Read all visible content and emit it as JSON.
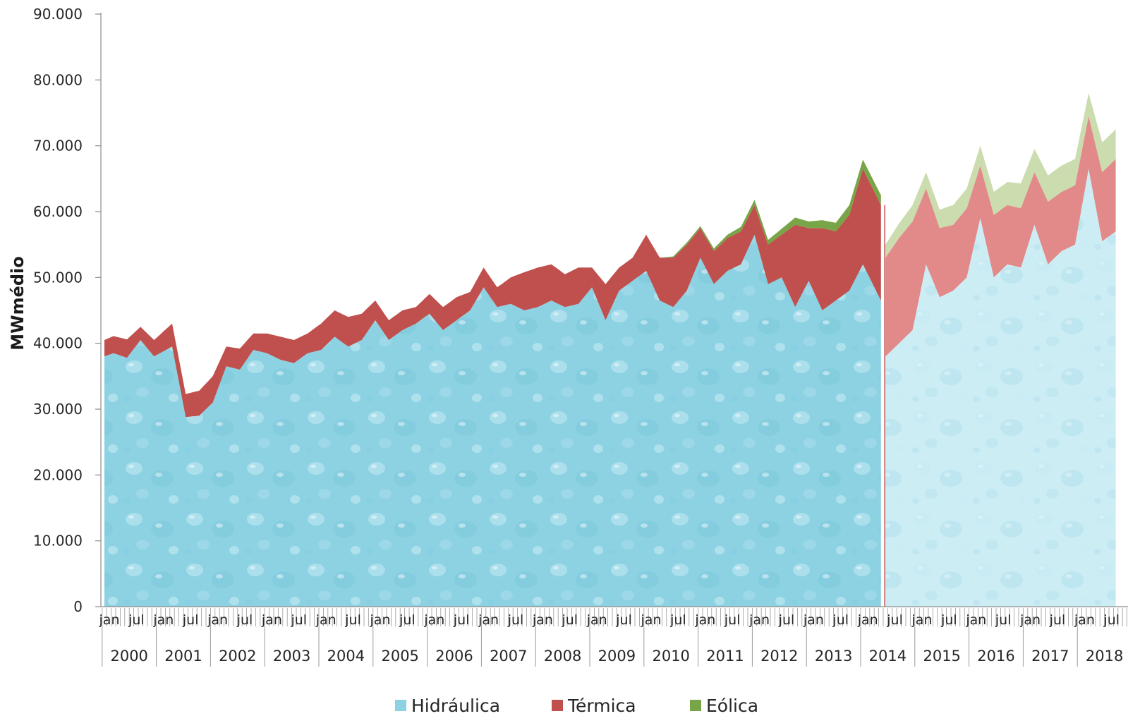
{
  "chart_data": {
    "type": "area",
    "stacked": true,
    "ylabel": "MWmédio",
    "ylim": [
      0,
      90000
    ],
    "y_ticks": [
      "0",
      "10.000",
      "20.000",
      "30.000",
      "40.000",
      "50.000",
      "60.000",
      "70.000",
      "80.000",
      "90.000"
    ],
    "month_tick_labels": [
      "jan",
      "jul"
    ],
    "years": [
      "2000",
      "2001",
      "2002",
      "2003",
      "2004",
      "2005",
      "2006",
      "2007",
      "2008",
      "2009",
      "2010",
      "2011",
      "2012",
      "2013",
      "2014",
      "2015",
      "2016",
      "2017",
      "2018"
    ],
    "forecast_start": "2014-06",
    "series_anchors": {
      "names": [
        "Hidráulica",
        "Térmica",
        "Eólica"
      ],
      "date": [
        "2000-01",
        "2000-03",
        "2000-06",
        "2000-09",
        "2000-12",
        "2001-04",
        "2001-07",
        "2001-10",
        "2002-01",
        "2002-04",
        "2002-07",
        "2002-10",
        "2003-01",
        "2003-04",
        "2003-07",
        "2003-10",
        "2004-01",
        "2004-04",
        "2004-07",
        "2004-10",
        "2005-01",
        "2005-04",
        "2005-07",
        "2005-10",
        "2006-01",
        "2006-04",
        "2006-07",
        "2006-10",
        "2007-01",
        "2007-04",
        "2007-07",
        "2007-10",
        "2008-01",
        "2008-04",
        "2008-07",
        "2008-10",
        "2009-01",
        "2009-04",
        "2009-07",
        "2009-10",
        "2010-01",
        "2010-04",
        "2010-07",
        "2010-10",
        "2011-01",
        "2011-04",
        "2011-07",
        "2011-10",
        "2012-01",
        "2012-04",
        "2012-07",
        "2012-10",
        "2013-01",
        "2013-04",
        "2013-07",
        "2013-10",
        "2014-01",
        "2014-05",
        "2014-06",
        "2014-09",
        "2014-12",
        "2015-03",
        "2015-06",
        "2015-09",
        "2015-12",
        "2016-03",
        "2016-06",
        "2016-09",
        "2016-12",
        "2017-03",
        "2017-06",
        "2017-09",
        "2017-12",
        "2018-03",
        "2018-06",
        "2018-09"
      ],
      "hidraulica": [
        38000,
        38500,
        37800,
        40500,
        38000,
        39500,
        28800,
        29000,
        31000,
        36500,
        36000,
        39000,
        38500,
        37500,
        37000,
        38500,
        39000,
        41000,
        39500,
        40500,
        43500,
        40500,
        42000,
        43000,
        44500,
        42000,
        43500,
        45000,
        48500,
        45500,
        46000,
        45000,
        45500,
        46500,
        45500,
        46000,
        48500,
        43500,
        48000,
        49500,
        51000,
        46500,
        45500,
        48000,
        53000,
        49000,
        51000,
        52000,
        56500,
        49000,
        50000,
        45500,
        49500,
        45000,
        46500,
        48000,
        52000,
        46500,
        38000,
        40000,
        42000,
        52000,
        47000,
        48000,
        50000,
        59000,
        50000,
        52000,
        51500,
        58000,
        52000,
        54000,
        55000,
        66500,
        55500,
        57000
      ],
      "termica": [
        2500,
        2600,
        2800,
        2000,
        2500,
        3500,
        3500,
        3800,
        4000,
        3000,
        3200,
        2500,
        3000,
        3500,
        3500,
        3000,
        4000,
        4000,
        4500,
        4000,
        3000,
        3000,
        3000,
        2500,
        3000,
        3500,
        3500,
        2800,
        3000,
        3000,
        4000,
        5800,
        6000,
        5500,
        5000,
        5500,
        3000,
        5500,
        3500,
        3500,
        5500,
        6500,
        7500,
        7000,
        4500,
        5000,
        5000,
        5000,
        4500,
        6000,
        6500,
        12500,
        8000,
        12500,
        10500,
        11500,
        14500,
        14500,
        15000,
        16000,
        16500,
        11500,
        10500,
        10000,
        10500,
        8000,
        9500,
        9000,
        9000,
        8000,
        9500,
        9000,
        9000,
        8000,
        10500,
        11000
      ],
      "eolica": [
        0,
        0,
        0,
        0,
        0,
        0,
        0,
        0,
        0,
        0,
        0,
        0,
        0,
        0,
        0,
        0,
        0,
        0,
        0,
        0,
        0,
        0,
        0,
        0,
        0,
        0,
        0,
        0,
        0,
        0,
        0,
        0,
        0,
        0,
        0,
        0,
        0,
        0,
        0,
        0,
        0,
        0,
        200,
        300,
        300,
        400,
        500,
        700,
        800,
        700,
        900,
        1100,
        1000,
        1200,
        1300,
        1500,
        1400,
        1500,
        2000,
        2200,
        2500,
        2500,
        2800,
        3000,
        3000,
        3000,
        3500,
        3500,
        3800,
        3500,
        4000,
        4000,
        4000,
        3500,
        4500,
        4500
      ]
    },
    "legend": {
      "position": "bottom",
      "items": [
        {
          "label": "Hidráulica",
          "color": "#8cd2e3"
        },
        {
          "label": "Térmica",
          "color": "#c0504d"
        },
        {
          "label": "Eólica",
          "color": "#77a547"
        }
      ]
    },
    "colors": {
      "hidraulica": "#8cd2e3",
      "hidraulica_forecast": "#cdedf5",
      "termica": "#c0504d",
      "termica_forecast": "#e28a8a",
      "eolica": "#77a547",
      "eolica_forecast": "#cbdcae"
    }
  }
}
